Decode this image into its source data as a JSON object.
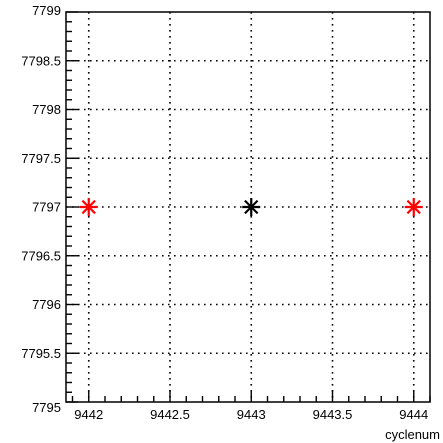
{
  "chart_data": {
    "type": "scatter",
    "title": "",
    "xlabel": "cyclenum",
    "ylabel": "",
    "xlim": [
      9441.86,
      9444.1
    ],
    "ylim": [
      7795,
      7799
    ],
    "x_ticks": [
      9442,
      9442.5,
      9443,
      9443.5,
      9444
    ],
    "x_tick_labels": [
      "9442",
      "9442.5",
      "9443",
      "9443.5",
      "9444"
    ],
    "y_ticks": [
      7795,
      7795.5,
      7796,
      7796.5,
      7797,
      7797.5,
      7798,
      7798.5,
      7799
    ],
    "y_tick_labels": [
      "7795",
      "7795.5",
      "7796",
      "7796.5",
      "7797",
      "7797.5",
      "7798",
      "7798.5",
      "7799"
    ],
    "grid": true,
    "marker": "asterisk",
    "points": [
      {
        "x": 9442,
        "y": 7797,
        "color": "#ff0000"
      },
      {
        "x": 9443,
        "y": 7797,
        "color": "#000000"
      },
      {
        "x": 9444,
        "y": 7797,
        "color": "#ff0000"
      }
    ]
  }
}
